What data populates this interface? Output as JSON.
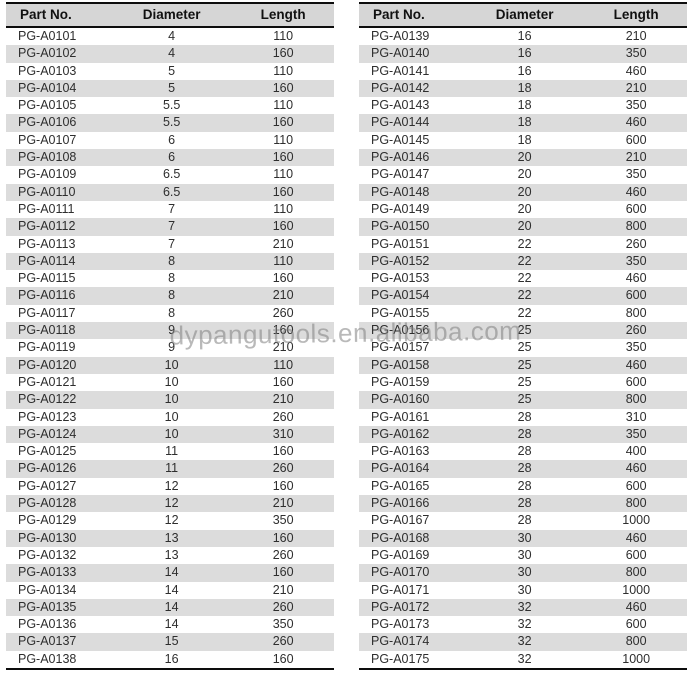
{
  "watermark": {
    "text": "dypangutools.en.alibaba.com"
  },
  "colors": {
    "header_bg": "#d6d6d6",
    "stripe_bg": "#dcdcdc",
    "border": "#0d0d0d",
    "text": "#2e2e2e",
    "watermark": "#808080"
  },
  "tables": [
    {
      "name": "left",
      "columns": [
        "Part No.",
        "Diameter",
        "Length"
      ],
      "rows": [
        [
          "PG-A0101",
          "4",
          "110"
        ],
        [
          "PG-A0102",
          "4",
          "160"
        ],
        [
          "PG-A0103",
          "5",
          "110"
        ],
        [
          "PG-A0104",
          "5",
          "160"
        ],
        [
          "PG-A0105",
          "5.5",
          "110"
        ],
        [
          "PG-A0106",
          "5.5",
          "160"
        ],
        [
          "PG-A0107",
          "6",
          "110"
        ],
        [
          "PG-A0108",
          "6",
          "160"
        ],
        [
          "PG-A0109",
          "6.5",
          "110"
        ],
        [
          "PG-A0110",
          "6.5",
          "160"
        ],
        [
          "PG-A0111",
          "7",
          "110"
        ],
        [
          "PG-A0112",
          "7",
          "160"
        ],
        [
          "PG-A0113",
          "7",
          "210"
        ],
        [
          "PG-A0114",
          "8",
          "110"
        ],
        [
          "PG-A0115",
          "8",
          "160"
        ],
        [
          "PG-A0116",
          "8",
          "210"
        ],
        [
          "PG-A0117",
          "8",
          "260"
        ],
        [
          "PG-A0118",
          "9",
          "160"
        ],
        [
          "PG-A0119",
          "9",
          "210"
        ],
        [
          "PG-A0120",
          "10",
          "110"
        ],
        [
          "PG-A0121",
          "10",
          "160"
        ],
        [
          "PG-A0122",
          "10",
          "210"
        ],
        [
          "PG-A0123",
          "10",
          "260"
        ],
        [
          "PG-A0124",
          "10",
          "310"
        ],
        [
          "PG-A0125",
          "11",
          "160"
        ],
        [
          "PG-A0126",
          "11",
          "260"
        ],
        [
          "PG-A0127",
          "12",
          "160"
        ],
        [
          "PG-A0128",
          "12",
          "210"
        ],
        [
          "PG-A0129",
          "12",
          "350"
        ],
        [
          "PG-A0130",
          "13",
          "160"
        ],
        [
          "PG-A0132",
          "13",
          "260"
        ],
        [
          "PG-A0133",
          "14",
          "160"
        ],
        [
          "PG-A0134",
          "14",
          "210"
        ],
        [
          "PG-A0135",
          "14",
          "260"
        ],
        [
          "PG-A0136",
          "14",
          "350"
        ],
        [
          "PG-A0137",
          "15",
          "260"
        ],
        [
          "PG-A0138",
          "16",
          "160"
        ]
      ]
    },
    {
      "name": "right",
      "columns": [
        "Part No.",
        "Diameter",
        "Length"
      ],
      "rows": [
        [
          "PG-A0139",
          "16",
          "210"
        ],
        [
          "PG-A0140",
          "16",
          "350"
        ],
        [
          "PG-A0141",
          "16",
          "460"
        ],
        [
          "PG-A0142",
          "18",
          "210"
        ],
        [
          "PG-A0143",
          "18",
          "350"
        ],
        [
          "PG-A0144",
          "18",
          "460"
        ],
        [
          "PG-A0145",
          "18",
          "600"
        ],
        [
          "PG-A0146",
          "20",
          "210"
        ],
        [
          "PG-A0147",
          "20",
          "350"
        ],
        [
          "PG-A0148",
          "20",
          "460"
        ],
        [
          "PG-A0149",
          "20",
          "600"
        ],
        [
          "PG-A0150",
          "20",
          "800"
        ],
        [
          "PG-A0151",
          "22",
          "260"
        ],
        [
          "PG-A0152",
          "22",
          "350"
        ],
        [
          "PG-A0153",
          "22",
          "460"
        ],
        [
          "PG-A0154",
          "22",
          "600"
        ],
        [
          "PG-A0155",
          "22",
          "800"
        ],
        [
          "PG-A0156",
          "25",
          "260"
        ],
        [
          "PG-A0157",
          "25",
          "350"
        ],
        [
          "PG-A0158",
          "25",
          "460"
        ],
        [
          "PG-A0159",
          "25",
          "600"
        ],
        [
          "PG-A0160",
          "25",
          "800"
        ],
        [
          "PG-A0161",
          "28",
          "310"
        ],
        [
          "PG-A0162",
          "28",
          "350"
        ],
        [
          "PG-A0163",
          "28",
          "400"
        ],
        [
          "PG-A0164",
          "28",
          "460"
        ],
        [
          "PG-A0165",
          "28",
          "600"
        ],
        [
          "PG-A0166",
          "28",
          "800"
        ],
        [
          "PG-A0167",
          "28",
          "1000"
        ],
        [
          "PG-A0168",
          "30",
          "460"
        ],
        [
          "PG-A0169",
          "30",
          "600"
        ],
        [
          "PG-A0170",
          "30",
          "800"
        ],
        [
          "PG-A0171",
          "30",
          "1000"
        ],
        [
          "PG-A0172",
          "32",
          "460"
        ],
        [
          "PG-A0173",
          "32",
          "600"
        ],
        [
          "PG-A0174",
          "32",
          "800"
        ],
        [
          "PG-A0175",
          "32",
          "1000"
        ]
      ]
    }
  ]
}
